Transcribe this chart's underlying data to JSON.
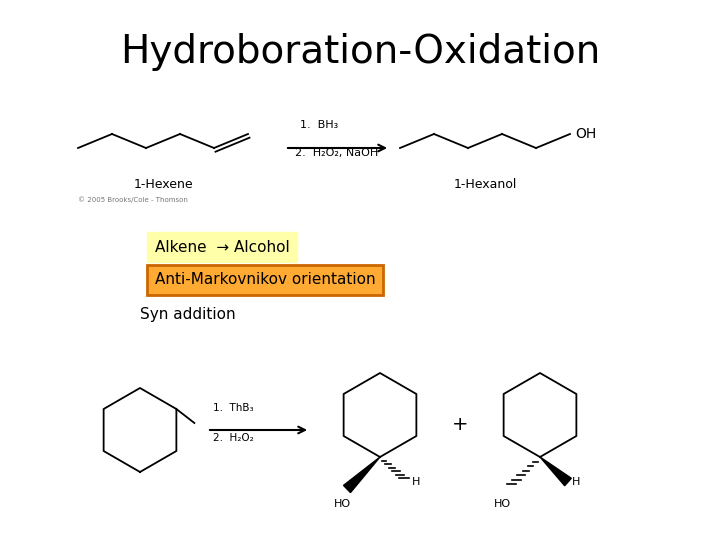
{
  "title": "Hydroboration-Oxidation",
  "title_fontsize": 28,
  "title_fontweight": "normal",
  "background_color": "#ffffff",
  "label1": "Alkene  → Alcohol",
  "label1_fontsize": 11,
  "label1_fontweight": "normal",
  "label1_bg": "#ffffaa",
  "label1_border": "#ffffaa",
  "label2": "Anti-Markovnikov orientation",
  "label2_fontsize": 11,
  "label2_fontweight": "normal",
  "label2_bg": "#ffaa33",
  "label2_border": "#cc6600",
  "label3": "Syn addition",
  "label3_fontsize": 11,
  "label3_fontweight": "normal",
  "rxn1_line1": "1.  BH₃",
  "rxn1_line2": "2.  H₂O₂, NaOH",
  "rxn1_fontsize": 8,
  "hexene_label": "1-Hexene",
  "hexanol_label": "1-Hexanol",
  "struct_label_fontsize": 9,
  "rxn2_line1": "1.  ThB₃",
  "rxn2_line2": "2.  H₂O₂",
  "rxn2_fontsize": 7.5,
  "plus_fontsize": 14,
  "copyright_text": "© 2005 Brooks/Cole - Thomson",
  "copyright_fontsize": 5
}
